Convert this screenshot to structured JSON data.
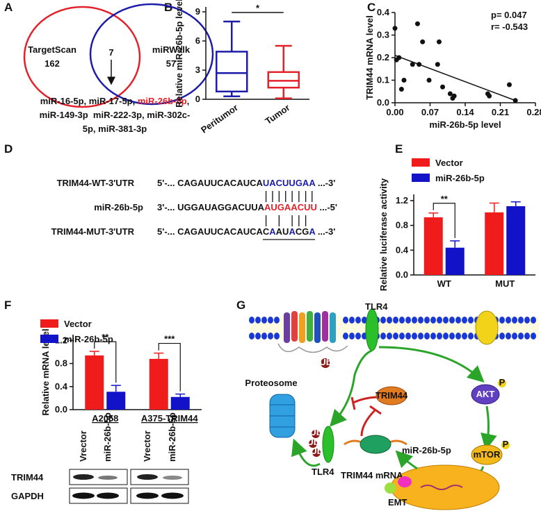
{
  "panel_labels": [
    "A",
    "B",
    "C",
    "D",
    "E",
    "F",
    "G"
  ],
  "venn": {
    "left_label": "TargetScan",
    "left_count": "162",
    "right_label": "miRWalk",
    "right_count": "57",
    "overlap": "7",
    "mirna_lines": [
      [
        {
          "text": "miR-16-5p, miR-17-5p, "
        },
        {
          "text": "miR-26b-5p",
          "color": "#e3212b"
        },
        {
          "text": ","
        }
      ],
      [
        {
          "text": "miR-149-3p  miR-222-3p, miR-302c-"
        }
      ],
      [
        {
          "text": "5p, miR-381-3p"
        }
      ]
    ]
  },
  "sequences": [
    {
      "name": "TRIM44-WT-3'UTR",
      "segments": [
        {
          "text": "5'-... CAGAUUCACAUCA"
        },
        {
          "text": "UACUUGAA",
          "color": "#1c1ca8"
        },
        {
          "text": " ...-3'"
        }
      ]
    },
    {
      "name": "miR-26b-5p",
      "segments": [
        {
          "text": "3'-... UGGAUAGGACUUA"
        },
        {
          "text": "AUGAACUU",
          "color": "#e3212b"
        },
        {
          "text": " ...-5'"
        }
      ]
    },
    {
      "name": "TRIM44-MUT-3'UTR",
      "segments": [
        {
          "text": "5'-... CAGAUUCACAUCA"
        },
        {
          "text": "C"
        },
        {
          "text": "A",
          "color": "#1c1ca8"
        },
        {
          "text": "AU"
        },
        {
          "text": "A",
          "color": "#1c1ca8"
        },
        {
          "text": "CG"
        },
        {
          "text": "A",
          "color": "#1c1ca8"
        },
        {
          "text": " ...-3'"
        }
      ]
    }
  ],
  "chart_data": [
    {
      "type": "box",
      "ylabel": "Relative miR-26b-5p level",
      "categories": [
        "Peritumor",
        "Tumor"
      ],
      "colors": [
        "#1c1ca8",
        "#e3212b"
      ],
      "boxes": [
        {
          "min": 0.3,
          "q1": 0.8,
          "median": 2.7,
          "q3": 4.9,
          "max": 8.0
        },
        {
          "min": 0.1,
          "q1": 1.2,
          "median": 1.9,
          "q3": 2.8,
          "max": 5.5
        }
      ],
      "significance": "*",
      "ylim": [
        0,
        9.5
      ],
      "yticks": [
        0,
        3,
        6,
        9
      ]
    },
    {
      "type": "scatter",
      "xlabel": "miR-26b-5p level",
      "ylabel": "TRIM44 mRNA level",
      "x": [
        0.0,
        0.003,
        0.008,
        0.013,
        0.018,
        0.035,
        0.045,
        0.048,
        0.055,
        0.068,
        0.085,
        0.088,
        0.095,
        0.11,
        0.115,
        0.118,
        0.185,
        0.188,
        0.228,
        0.24
      ],
      "values": [
        0.33,
        0.19,
        0.2,
        0.06,
        0.1,
        0.17,
        0.35,
        0.17,
        0.27,
        0.1,
        0.17,
        0.27,
        0.07,
        0.04,
        0.02,
        0.03,
        0.04,
        0.03,
        0.08,
        0.01
      ],
      "fit": {
        "x": [
          0,
          0.24
        ],
        "y": [
          0.21,
          0.01
        ]
      },
      "annotations": [
        "p= 0.047",
        "r= -0.543"
      ],
      "xlim": [
        0,
        0.28
      ],
      "xticks": [
        {
          "value": 0,
          "label": "0.00"
        },
        0.07,
        0.14,
        0.21,
        0.28
      ],
      "ylim": [
        0,
        0.4
      ],
      "yticks": [
        {
          "value": 0,
          "label": "0.0"
        },
        0.1,
        0.2,
        0.3,
        0.4
      ]
    },
    {
      "type": "bar",
      "ylabel": "Relative luciferase activity",
      "categories": [
        "WT",
        "MUT"
      ],
      "series": [
        {
          "name": "Vector",
          "color": "#f01c1c",
          "values": [
            0.93,
            1.01
          ],
          "errors": [
            0.07,
            0.15
          ]
        },
        {
          "name": "miR-26b-5p",
          "color": "#1212c8",
          "values": [
            0.44,
            1.11
          ],
          "errors": [
            0.11,
            0.07
          ]
        }
      ],
      "significance": [
        "**"
      ],
      "ylim": [
        0,
        1.3
      ],
      "yticks": [
        {
          "value": 0,
          "label": "0.0"
        },
        0.4,
        0.8,
        1.2
      ]
    },
    {
      "type": "bar",
      "ylabel": "Relative mRNA level",
      "categories": [
        "A2058",
        "A375-TRIM44"
      ],
      "series": [
        {
          "name": "Vector",
          "color": "#f01c1c",
          "values": [
            0.94,
            0.88
          ],
          "errors": [
            0.07,
            0.1
          ]
        },
        {
          "name": "miR-26b-5p",
          "color": "#1212c8",
          "values": [
            0.31,
            0.22
          ],
          "errors": [
            0.11,
            0.05
          ]
        }
      ],
      "significance": [
        "**",
        "***"
      ],
      "ylim": [
        0,
        1.3
      ],
      "yticks": [
        {
          "value": 0,
          "label": "0.0"
        },
        0.4,
        0.8,
        1.2
      ]
    }
  ],
  "blot": {
    "lanes": [
      "Vrector",
      "miR-26b-5p",
      "Vrector",
      "miR-26b-5p"
    ],
    "rows": [
      "TRIM44",
      "GAPDH"
    ]
  },
  "pathway": {
    "receptor": "TLR4",
    "ub": "Ub",
    "trim44": "TRIM44",
    "akt": "AKT",
    "phospho": "P",
    "proteosome": "Proteosome",
    "tlr4": "TLR4",
    "mrna": "TRIM44 mRNA",
    "mirna": "miR-26b-5p",
    "mtor": "mTOR",
    "emt": "EMT"
  }
}
